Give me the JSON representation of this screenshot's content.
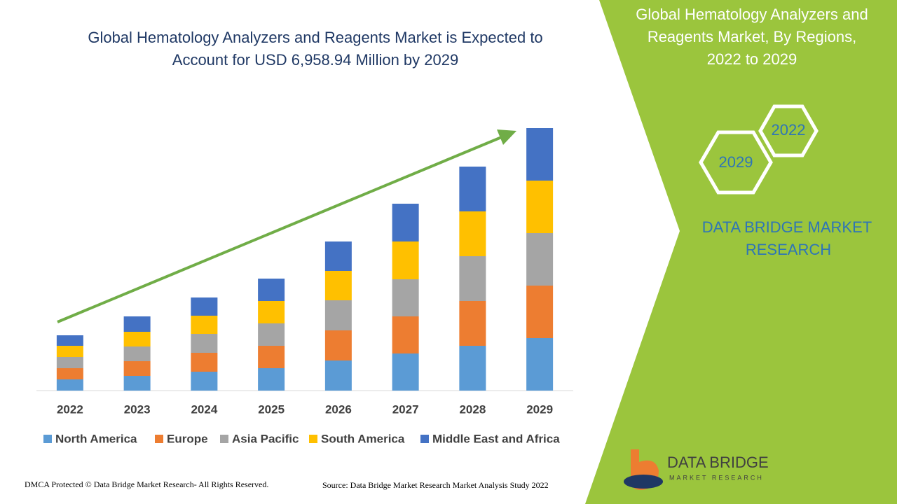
{
  "chart_data": {
    "type": "bar",
    "stacked": true,
    "title": [
      "Global Hematology Analyzers and Reagents Market is Expected to",
      "Account for USD 6,958.94 Million by 2029"
    ],
    "categories": [
      "2022",
      "2023",
      "2024",
      "2025",
      "2026",
      "2027",
      "2028",
      "2029"
    ],
    "series": [
      {
        "name": "North America",
        "color": "#5b9bd5",
        "values": [
          16,
          21,
          27,
          32,
          43,
          53,
          64,
          75
        ]
      },
      {
        "name": "Europe",
        "color": "#ed7d31",
        "values": [
          16,
          21,
          27,
          32,
          43,
          53,
          64,
          75
        ]
      },
      {
        "name": "Asia Pacific",
        "color": "#a5a5a5",
        "values": [
          16,
          21,
          27,
          32,
          43,
          53,
          64,
          75
        ]
      },
      {
        "name": "South America",
        "color": "#ffc000",
        "values": [
          16,
          21,
          26,
          32,
          42,
          54,
          64,
          75
        ]
      },
      {
        "name": "Middle East and Africa",
        "color": "#4472c4",
        "values": [
          15,
          22,
          26,
          32,
          42,
          54,
          64,
          75
        ]
      }
    ],
    "ylim": [
      0,
      375
    ]
  },
  "panel": {
    "title": [
      "Global Hematology Analyzers and",
      "Reagents Market, By Regions,",
      "2022 to 2029"
    ],
    "hexagons": [
      "2022",
      "2029"
    ],
    "brand": [
      "DATA BRIDGE MARKET",
      "RESEARCH"
    ]
  },
  "footer": {
    "copyright": "DMCA Protected © Data Bridge Market Research- All Rights Reserved.",
    "source": "Source: Data Bridge Market Research Market Analysis Study 2022"
  },
  "logo": {
    "name": "DATA BRIDGE",
    "tagline": "MARKET RESEARCH"
  }
}
